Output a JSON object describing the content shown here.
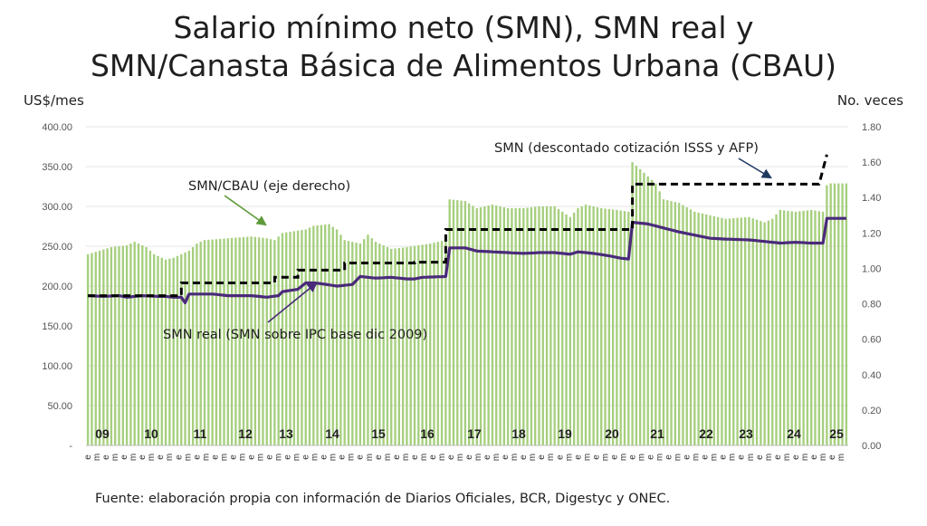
{
  "title_line1": "Salario mínimo neto (SMN), SMN real y",
  "title_line2": "SMN/Canasta Básica de Alimentos Urbana (CBAU)",
  "source": "Fuente: elaboración propia con información de Diarios Oficiales, BCR, Digestyc y ONEC.",
  "chart_data": {
    "type": "bar+line",
    "left_axis": {
      "label": "US$/mes",
      "ylim": [
        0,
        400
      ],
      "ticks": [
        "-",
        "50.00",
        "100.00",
        "150.00",
        "200.00",
        "250.00",
        "300.00",
        "350.00",
        "400.00"
      ]
    },
    "right_axis": {
      "label": "No. veces",
      "ylim": [
        0,
        1.8
      ],
      "ticks": [
        "0.00",
        "0.20",
        "0.40",
        "0.60",
        "0.80",
        "1.00",
        "1.20",
        "1.40",
        "1.60",
        "1.80"
      ]
    },
    "year_labels": [
      "09",
      "10",
      "11",
      "12",
      "13",
      "14",
      "15",
      "16",
      "17",
      "18",
      "19",
      "20",
      "21",
      "22",
      "23",
      "24",
      "25"
    ],
    "month_tick_labels": [
      "e",
      "m"
    ],
    "n_months": 196,
    "colors": {
      "bars": "#a6cf7e",
      "smn": "#000000",
      "smn_real": "#4a2a7a",
      "arrow_green": "#5f9a3a",
      "arrow_purple": "#4a2a7a",
      "arrow_navy": "#1f3a5f"
    },
    "annotations": {
      "cbau": "SMN/CBAU (eje derecho)",
      "smn": "SMN (descontado cotización ISSS y AFP)",
      "smn_real": "SMN real (SMN sobre IPC base dic 2009)"
    },
    "series": [
      {
        "name": "SMN/CBAU",
        "kind": "bar",
        "axis": "right",
        "knots": [
          [
            0,
            1.08
          ],
          [
            6,
            1.12
          ],
          [
            10,
            1.13
          ],
          [
            12,
            1.15
          ],
          [
            13,
            1.14
          ],
          [
            15,
            1.12
          ],
          [
            17,
            1.08
          ],
          [
            20,
            1.05
          ],
          [
            22,
            1.06
          ],
          [
            24,
            1.08
          ],
          [
            26,
            1.1
          ],
          [
            28,
            1.14
          ],
          [
            30,
            1.16
          ],
          [
            36,
            1.17
          ],
          [
            42,
            1.18
          ],
          [
            46,
            1.17
          ],
          [
            48,
            1.16
          ],
          [
            50,
            1.2
          ],
          [
            56,
            1.22
          ],
          [
            58,
            1.24
          ],
          [
            62,
            1.25
          ],
          [
            64,
            1.22
          ],
          [
            66,
            1.16
          ],
          [
            70,
            1.14
          ],
          [
            72,
            1.19
          ],
          [
            74,
            1.15
          ],
          [
            78,
            1.11
          ],
          [
            82,
            1.12
          ],
          [
            88,
            1.14
          ],
          [
            92,
            1.16
          ],
          [
            93,
            1.39
          ],
          [
            97,
            1.38
          ],
          [
            100,
            1.34
          ],
          [
            104,
            1.36
          ],
          [
            108,
            1.34
          ],
          [
            112,
            1.34
          ],
          [
            116,
            1.35
          ],
          [
            120,
            1.35
          ],
          [
            124,
            1.29
          ],
          [
            126,
            1.34
          ],
          [
            128,
            1.36
          ],
          [
            132,
            1.34
          ],
          [
            136,
            1.33
          ],
          [
            139,
            1.32
          ],
          [
            140,
            1.6
          ],
          [
            143,
            1.54
          ],
          [
            146,
            1.48
          ],
          [
            148,
            1.39
          ],
          [
            152,
            1.37
          ],
          [
            156,
            1.32
          ],
          [
            160,
            1.3
          ],
          [
            164,
            1.28
          ],
          [
            170,
            1.29
          ],
          [
            174,
            1.26
          ],
          [
            176,
            1.28
          ],
          [
            178,
            1.33
          ],
          [
            182,
            1.32
          ],
          [
            186,
            1.33
          ],
          [
            189,
            1.32
          ],
          [
            190,
            1.47
          ],
          [
            191,
            1.48
          ]
        ]
      },
      {
        "name": "SMN",
        "kind": "dashed-step",
        "axis": "left",
        "steps": [
          [
            0,
            188
          ],
          [
            24,
            188
          ],
          [
            24,
            204
          ],
          [
            48,
            204
          ],
          [
            48,
            211
          ],
          [
            54,
            211
          ],
          [
            54,
            220
          ],
          [
            66,
            220
          ],
          [
            66,
            229
          ],
          [
            84,
            229
          ],
          [
            84,
            230
          ],
          [
            92,
            230
          ],
          [
            92,
            271
          ],
          [
            140,
            271
          ],
          [
            140,
            328
          ],
          [
            188,
            328
          ],
          [
            188,
            328
          ],
          [
            190,
            365
          ]
        ]
      },
      {
        "name": "SMN real",
        "kind": "line",
        "axis": "left",
        "knots": [
          [
            0,
            188
          ],
          [
            4,
            187
          ],
          [
            8,
            188
          ],
          [
            10,
            186
          ],
          [
            14,
            188
          ],
          [
            18,
            187
          ],
          [
            20,
            187
          ],
          [
            22,
            186
          ],
          [
            24,
            186
          ],
          [
            25,
            179
          ],
          [
            26,
            190
          ],
          [
            32,
            190
          ],
          [
            36,
            188
          ],
          [
            42,
            188
          ],
          [
            46,
            186
          ],
          [
            49,
            188
          ],
          [
            50,
            193
          ],
          [
            54,
            196
          ],
          [
            56,
            204
          ],
          [
            58,
            204
          ],
          [
            60,
            203
          ],
          [
            64,
            200
          ],
          [
            68,
            202
          ],
          [
            70,
            212
          ],
          [
            74,
            210
          ],
          [
            78,
            211
          ],
          [
            80,
            210
          ],
          [
            82,
            209
          ],
          [
            84,
            209
          ],
          [
            86,
            211
          ],
          [
            92,
            212
          ],
          [
            93,
            248
          ],
          [
            97,
            248
          ],
          [
            100,
            244
          ],
          [
            104,
            243
          ],
          [
            108,
            242
          ],
          [
            112,
            241
          ],
          [
            116,
            242
          ],
          [
            120,
            242
          ],
          [
            124,
            240
          ],
          [
            126,
            243
          ],
          [
            130,
            241
          ],
          [
            134,
            238
          ],
          [
            137,
            235
          ],
          [
            139,
            234
          ],
          [
            140,
            280
          ],
          [
            144,
            278
          ],
          [
            148,
            273
          ],
          [
            152,
            268
          ],
          [
            156,
            264
          ],
          [
            160,
            260
          ],
          [
            164,
            259
          ],
          [
            170,
            258
          ],
          [
            174,
            256
          ],
          [
            178,
            254
          ],
          [
            182,
            255
          ],
          [
            186,
            254
          ],
          [
            189,
            254
          ],
          [
            190,
            285
          ]
        ]
      }
    ]
  }
}
